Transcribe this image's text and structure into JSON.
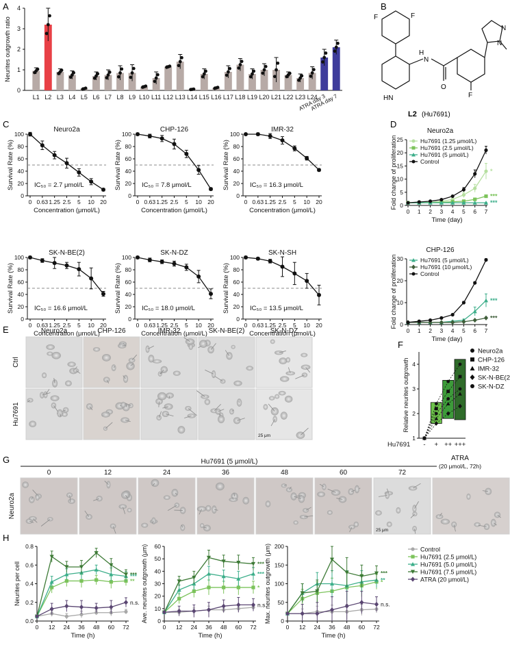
{
  "panel_letters": [
    "A",
    "B",
    "C",
    "D",
    "E",
    "F",
    "G",
    "H"
  ],
  "chart_data": [
    {
      "id": "A",
      "type": "bar",
      "ylabel": "Neurites outgrowth ratio",
      "xlabel": "",
      "ylim": [
        0,
        4
      ],
      "yticks": [
        0,
        1,
        2,
        3,
        4
      ],
      "categories": [
        "L1",
        "L2",
        "L3",
        "L4",
        "L5",
        "L6",
        "L7",
        "L8",
        "L9",
        "L10",
        "L11",
        "L12",
        "L13",
        "L14",
        "L15",
        "L16",
        "L17",
        "L18",
        "L19",
        "L20",
        "L21",
        "L22",
        "L23",
        "L24",
        "ATRA day 3",
        "ATRA day 7"
      ],
      "values": [
        0.95,
        3.2,
        0.9,
        0.75,
        0.08,
        0.7,
        0.75,
        0.85,
        0.85,
        0.18,
        0.6,
        1.15,
        1.4,
        0.05,
        0.8,
        0.12,
        0.9,
        1.25,
        0.8,
        1.0,
        1.0,
        0.75,
        0.6,
        0.85,
        1.6,
        2.1
      ],
      "errors": [
        0.15,
        0.8,
        0.15,
        0.2,
        0.05,
        0.2,
        0.25,
        0.35,
        0.4,
        0.05,
        0.3,
        0.05,
        0.35,
        0.02,
        0.25,
        0.05,
        0.3,
        0.3,
        0.25,
        0.3,
        0.6,
        0.15,
        0.2,
        0.3,
        0.4,
        0.35
      ],
      "colors": {
        "default": "#b7aaa6",
        "L2": "#e84046",
        "ATRA": "#3e3c9b"
      }
    },
    {
      "id": "B",
      "type": "structure",
      "atoms": [
        "F",
        "F",
        "HN",
        "H",
        "N",
        "O",
        "F",
        "N",
        "N"
      ],
      "compound_label": "L2",
      "compound_note": "(Hu7691)"
    },
    {
      "id": "C",
      "type": "line",
      "xlabel": "Concentration (μmol/L)",
      "ylabel": "Survival Rate (%)",
      "x": [
        0,
        0.63,
        1.25,
        2.5,
        5,
        10,
        20
      ],
      "xticks": [
        "0",
        "0.63",
        "1.25",
        "2.5",
        "5",
        "10",
        "20"
      ],
      "ylim": [
        0,
        100
      ],
      "yticks": [
        0,
        20,
        40,
        60,
        80,
        100
      ],
      "reference_y": 50,
      "plots": [
        {
          "title": "Neuro2a",
          "ic50": "IC₅₀ = 2.7 μmol/L",
          "y": [
            100,
            82,
            66,
            53,
            38,
            23,
            10
          ],
          "err": [
            3,
            7,
            6,
            8,
            6,
            5,
            2
          ]
        },
        {
          "title": "CHP-126",
          "ic50": "IC₅₀ = 7.8 μmol/L",
          "y": [
            100,
            97,
            93,
            84,
            68,
            42,
            11
          ],
          "err": [
            2,
            3,
            5,
            8,
            6,
            7,
            2
          ]
        },
        {
          "title": "IMR-32",
          "ic50": "IC₅₀ = 16.3 μmol/L",
          "y": [
            100,
            100,
            97,
            90,
            77,
            61,
            42
          ],
          "err": [
            1,
            2,
            4,
            6,
            4,
            3,
            2
          ]
        },
        {
          "title": "SK-N-BE(2)",
          "ic50": "IC₅₀ = 16.6 μmol/L",
          "y": [
            100,
            95,
            91,
            87,
            81,
            66,
            41
          ],
          "err": [
            2,
            3,
            9,
            5,
            11,
            17,
            4
          ]
        },
        {
          "title": "SK-N-DZ",
          "ic50": "IC₅₀ = 18.0 μmol/L",
          "y": [
            100,
            96,
            93,
            90,
            84,
            69,
            41
          ],
          "err": [
            2,
            3,
            3,
            4,
            5,
            10,
            8
          ]
        },
        {
          "title": "SK-N-SH",
          "ic50": "IC₅₀ = 13.5 μmol/L",
          "y": [
            100,
            98,
            94,
            85,
            74,
            62,
            39
          ],
          "err": [
            2,
            2,
            3,
            16,
            18,
            12,
            16
          ]
        }
      ]
    },
    {
      "id": "D",
      "type": "line",
      "xlabel": "Time (day)",
      "ylabel": "Fold change of proliferation",
      "x": [
        0,
        1,
        2,
        3,
        4,
        5,
        6,
        7
      ],
      "plots": [
        {
          "title": "Neuro2a",
          "ylim": [
            0,
            25
          ],
          "yticks": [
            0,
            5,
            10,
            15,
            20,
            25
          ],
          "series": [
            {
              "name": "Hu7691 (1.25 μmol/L)",
              "color": "#b6dfa0",
              "marker": "circle",
              "y": [
                1,
                1.1,
                1.2,
                1.5,
                2.3,
                4,
                6.5,
                13
              ],
              "err": [
                0,
                0.1,
                0.1,
                0.2,
                0.4,
                1,
                1.5,
                3
              ],
              "sig": "*"
            },
            {
              "name": "Hu7691 (2.5 μmol/L)",
              "color": "#7cc35b",
              "marker": "square",
              "y": [
                1,
                1,
                1.1,
                1.2,
                1.4,
                1.6,
                2.3,
                3.5
              ],
              "err": [
                0,
                0,
                0.1,
                0.1,
                0.1,
                0.2,
                0.3,
                0.5
              ],
              "sig": "***"
            },
            {
              "name": "Hu7691 (5 μmol/L)",
              "color": "#3cae8a",
              "marker": "triangle",
              "y": [
                1,
                1,
                1,
                1,
                1,
                1,
                1,
                1
              ],
              "err": [
                0,
                0,
                0,
                0,
                0,
                0,
                0,
                0.1
              ],
              "sig": "***"
            },
            {
              "name": "Control",
              "color": "#111111",
              "marker": "circle",
              "y": [
                1,
                1.3,
                1.6,
                2.2,
                3.5,
                6,
                12,
                21
              ],
              "err": [
                0,
                0.1,
                0.1,
                0.2,
                0.3,
                0.8,
                1.5,
                1.5
              ],
              "sig": ""
            }
          ]
        },
        {
          "title": "CHP-126",
          "ylim": [
            0,
            30
          ],
          "yticks": [
            0,
            10,
            20,
            30
          ],
          "series": [
            {
              "name": "Hu7691 (5 μmol/L)",
              "color": "#3cae8a",
              "marker": "triangle",
              "y": [
                1,
                1,
                1,
                1,
                1.5,
                2,
                6,
                11
              ],
              "err": [
                0,
                0,
                0,
                0,
                0.3,
                0.5,
                2,
                3
              ],
              "sig": "***"
            },
            {
              "name": "Hu7691 (10 μmol/L)",
              "color": "#3f5e3a",
              "marker": "diamond",
              "y": [
                1,
                1,
                1,
                1,
                1,
                1.3,
                2,
                3
              ],
              "err": [
                0,
                0,
                0,
                0,
                0,
                0.2,
                0.3,
                0.4
              ],
              "sig": "***"
            },
            {
              "name": "Control",
              "color": "#111111",
              "marker": "circle",
              "y": [
                1,
                1.5,
                2,
                3,
                4.5,
                10,
                19,
                29.5
              ],
              "err": [
                0,
                0.1,
                0.2,
                0.3,
                0.4,
                0.6,
                0.6,
                0.6
              ],
              "sig": ""
            }
          ]
        }
      ]
    },
    {
      "id": "E",
      "type": "image_grid",
      "columns": [
        "Neuro2a",
        "CHP-126",
        "IMR-32",
        "SK-N-BE(2)",
        "SK-N-DZ"
      ],
      "rows": [
        "Ctrl",
        "Hu7691"
      ],
      "scale_label": "25 μm"
    },
    {
      "id": "F",
      "type": "bar",
      "ylabel": "Relative neurites outgrowth",
      "xlabel": "Hu7691",
      "categories": [
        "-",
        "+",
        "++",
        "+++"
      ],
      "ylim": [
        1,
        4.5
      ],
      "yticks": [
        1,
        2,
        3,
        4
      ],
      "box_low": [
        1,
        1.6,
        1.8,
        1.75
      ],
      "box_high": [
        1,
        2.45,
        3.35,
        4.2
      ],
      "box_colors": [
        "#ffffff",
        "#6cc24a",
        "#3d9b3a",
        "#2f6b2a"
      ],
      "series": [
        {
          "name": "Neuro2a",
          "marker": "circle",
          "values": [
            1,
            2.4,
            3.3,
            4.0
          ]
        },
        {
          "name": "CHP-126",
          "marker": "square",
          "values": [
            1,
            2.2,
            2.9,
            3.5
          ]
        },
        {
          "name": "IMR-32",
          "marker": "triangle",
          "values": [
            1,
            1.8,
            2.4,
            2.8
          ]
        },
        {
          "name": "SK-N-BE(2)",
          "marker": "diamond",
          "values": [
            1,
            1.6,
            2.0,
            2.3
          ]
        },
        {
          "name": "SK-N-DZ",
          "marker": "circle",
          "values": [
            1,
            2.0,
            2.6,
            3.0
          ]
        }
      ]
    },
    {
      "id": "G",
      "type": "image_grid",
      "header": "Hu7691 (5 μmol/L)",
      "columns": [
        "0",
        "12",
        "24",
        "36",
        "48",
        "60",
        "72"
      ],
      "extra_column": "ATRA",
      "extra_note": "(20 μmol/L, 72h)",
      "row_label": "Neuro2a",
      "scale_label": "25 μm"
    },
    {
      "id": "H",
      "type": "line",
      "xlabel": "Time (h)",
      "x": [
        0,
        12,
        24,
        36,
        48,
        60,
        72
      ],
      "legend": [
        {
          "name": "Control",
          "color": "#a8a8a8",
          "marker": "circle"
        },
        {
          "name": "Hu7691 (2.5 μmol/L)",
          "color": "#7cc35b",
          "marker": "square"
        },
        {
          "name": "Hu7691 (5.0 μmol/L)",
          "color": "#3cae8a",
          "marker": "triangle"
        },
        {
          "name": "Hu7691 (7.5 μmol/L)",
          "color": "#3d7a36",
          "marker": "triangle-down"
        },
        {
          "name": "ATRA (20 μmol/L)",
          "color": "#5a4672",
          "marker": "diamond"
        }
      ],
      "plots": [
        {
          "ylabel": "Neurites per cell",
          "ylim": [
            0,
            0.8
          ],
          "yticks": [
            "0.0",
            "0.2",
            "0.4",
            "0.6",
            "0.8"
          ],
          "ytickvals": [
            0,
            0.2,
            0.4,
            0.6,
            0.8
          ],
          "series": [
            [
              0.05,
              0.08,
              0.05,
              0.07,
              0.09,
              0.09,
              0.1
            ],
            [
              0.05,
              0.36,
              0.43,
              0.43,
              0.44,
              0.42,
              0.43
            ],
            [
              0.05,
              0.42,
              0.5,
              0.52,
              0.55,
              0.5,
              0.48
            ],
            [
              0.05,
              0.69,
              0.58,
              0.58,
              0.73,
              0.6,
              0.5
            ],
            [
              0.05,
              0.13,
              0.16,
              0.15,
              0.14,
              0.15,
              0.2
            ]
          ],
          "err": [
            0.02,
            0.06,
            0.06,
            0.07,
            0.05,
            0.07,
            0.05
          ],
          "sig": [
            "***",
            "***",
            "**",
            "n.s."
          ]
        },
        {
          "ylabel": "Ave. neurites outgrowth (μm)",
          "ylim": [
            0,
            60
          ],
          "yticks": [
            "0",
            "10",
            "20",
            "30",
            "40",
            "50",
            "60"
          ],
          "ytickvals": [
            0,
            10,
            20,
            30,
            40,
            50,
            60
          ],
          "series": [
            [
              7,
              7,
              8,
              9,
              9,
              10,
              11
            ],
            [
              7,
              18,
              24,
              27,
              27,
              27,
              27
            ],
            [
              7,
              25,
              30,
              38,
              36,
              34,
              38
            ],
            [
              7,
              32,
              35,
              51,
              48,
              47,
              46
            ],
            [
              7,
              8,
              8,
              9,
              12,
              13,
              13
            ]
          ],
          "err": [
            2,
            4,
            5,
            6,
            5,
            6,
            5
          ],
          "sig": [
            "***",
            "***",
            "*",
            "n.s."
          ]
        },
        {
          "ylabel": "Max. neurites outgrowth (μm)",
          "ylim": [
            0,
            200
          ],
          "yticks": [
            "0",
            "50",
            "100",
            "150",
            "200"
          ],
          "ytickvals": [
            0,
            50,
            100,
            150,
            200
          ],
          "series": [
            [
              20,
              20,
              25,
              25,
              25,
              30,
              32
            ],
            [
              20,
              60,
              75,
              80,
              90,
              95,
              105
            ],
            [
              20,
              75,
              100,
              100,
              95,
              105,
              110
            ],
            [
              20,
              75,
              80,
              165,
              130,
              120,
              128
            ],
            [
              20,
              20,
              20,
              30,
              40,
              50,
              45
            ]
          ],
          "err": [
            8,
            25,
            30,
            35,
            40,
            30,
            20
          ],
          "sig": [
            "***",
            "**",
            "*",
            "n.s."
          ]
        }
      ]
    }
  ]
}
